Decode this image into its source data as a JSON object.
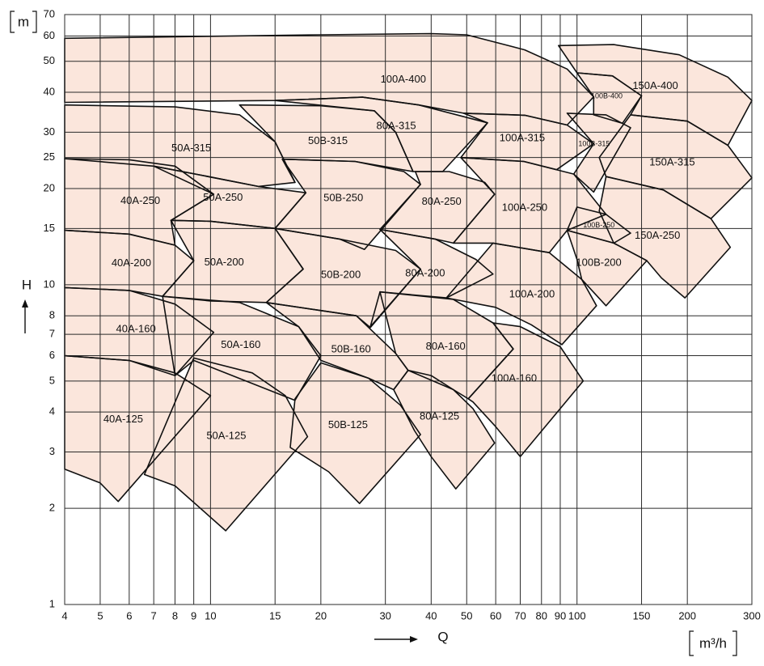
{
  "chart_data": {
    "type": "coverage",
    "xlabel": "Q",
    "ylabel": "H",
    "xunit": "m³/h",
    "yunit": "m",
    "xscale": "log",
    "yscale": "log",
    "xlim": [
      4,
      300
    ],
    "ylim": [
      1,
      70
    ],
    "xticks": [
      4,
      5,
      6,
      7,
      8,
      9,
      10,
      15,
      20,
      30,
      40,
      50,
      60,
      70,
      80,
      90,
      100,
      150,
      200,
      300
    ],
    "yticks": [
      1,
      2,
      3,
      4,
      5,
      6,
      7,
      8,
      10,
      15,
      20,
      25,
      30,
      40,
      50,
      60,
      70
    ],
    "grid": true,
    "color": "#fbe6dc",
    "series": [
      {
        "name": "40A-125",
        "x": [
          4,
          6,
          8,
          10,
          5.6,
          5,
          4
        ],
        "values": [
          6,
          5.8,
          5.3,
          4.5,
          2.1,
          2.4,
          2.65
        ]
      },
      {
        "name": "50A-125",
        "x": [
          9,
          13,
          16,
          18.4,
          11,
          8,
          6.6
        ],
        "values": [
          5.9,
          5.3,
          4.5,
          3.35,
          1.7,
          2.35,
          2.55
        ]
      },
      {
        "name": "50B-125",
        "x": [
          17,
          20,
          27,
          33,
          37.4,
          25.5,
          21,
          16.5
        ],
        "values": [
          4.4,
          5.7,
          5.1,
          4.2,
          3.4,
          2.07,
          2.6,
          3.1
        ]
      },
      {
        "name": "80A-125",
        "x": [
          31.6,
          34.6,
          40,
          46,
          52,
          59.6,
          46.7,
          40,
          36
        ],
        "values": [
          4.7,
          5.4,
          5.2,
          4.7,
          4.1,
          3.2,
          2.3,
          2.9,
          3.5
        ]
      },
      {
        "name": "100A-160",
        "x": [
          67,
          59,
          70,
          90,
          104,
          70,
          60,
          52,
          50.5
        ],
        "values": [
          6.3,
          7.6,
          7.4,
          6.4,
          5,
          2.9,
          3.6,
          4.3,
          4.4
        ]
      },
      {
        "name": "40A-160",
        "x": [
          4,
          6,
          8,
          10.2,
          8,
          6,
          4
        ],
        "values": [
          9.8,
          9.6,
          8.7,
          7.1,
          5.2,
          5.8,
          6
        ]
      },
      {
        "name": "50A-160",
        "x": [
          7.4,
          12,
          17.4,
          20,
          17,
          9,
          8
        ],
        "values": [
          9.2,
          8.8,
          7.4,
          6,
          4.35,
          5.8,
          5.2
        ]
      },
      {
        "name": "50B-160",
        "x": [
          14.2,
          25,
          32,
          34.6,
          31.6,
          27,
          20,
          17.4
        ],
        "values": [
          8.8,
          8,
          6.1,
          5.4,
          4.7,
          5.1,
          5.8,
          7.4
        ]
      },
      {
        "name": "80A-160",
        "x": [
          29,
          46,
          59,
          67,
          50.5,
          46,
          34.6,
          32
        ],
        "values": [
          9.5,
          9,
          7.6,
          6.3,
          4.4,
          4.7,
          5.4,
          6.1
        ]
      },
      {
        "name": "40A-200",
        "x": [
          4,
          6,
          8,
          9,
          7.4,
          6,
          4
        ],
        "values": [
          14.8,
          14.4,
          13.3,
          11.9,
          9.2,
          9.6,
          9.8
        ]
      },
      {
        "name": "50A-200",
        "x": [
          7.8,
          10,
          15,
          17.9,
          14.2,
          10,
          7.4,
          9
        ],
        "values": [
          15.9,
          15.8,
          15,
          11.2,
          8.8,
          8.9,
          9.2,
          11.9
        ]
      },
      {
        "name": "50B-200",
        "x": [
          15,
          22.5,
          32,
          37.4,
          27.3,
          25,
          14.2,
          17.9
        ],
        "values": [
          15,
          13.9,
          12.8,
          11.2,
          7.35,
          8,
          8.8,
          11.2
        ]
      },
      {
        "name": "80A-200",
        "x": [
          29,
          41,
          53,
          59,
          44,
          29,
          27.3,
          37.4
        ],
        "values": [
          14.9,
          13.9,
          12,
          10.8,
          9.1,
          9.5,
          7.4,
          11.2
        ]
      },
      {
        "name": "100A-200",
        "x": [
          59,
          84,
          103,
          113,
          91,
          75,
          60,
          44
        ],
        "values": [
          13.5,
          12.6,
          10.4,
          8.6,
          6.5,
          7.5,
          8.5,
          9.1
        ]
      },
      {
        "name": "100B-200",
        "x": [
          94,
          126,
          155,
          120,
          103,
          100
        ],
        "values": [
          14.8,
          13.5,
          11.9,
          8.6,
          10.4,
          12
        ]
      },
      {
        "name": "40A-250",
        "x": [
          4,
          6,
          8,
          10.2,
          7.8,
          8,
          6,
          4
        ],
        "values": [
          24.8,
          24.6,
          23.5,
          19.2,
          15.9,
          13.3,
          14.4,
          14.8
        ]
      },
      {
        "name": "50A-250",
        "x": [
          7,
          9.1,
          13.5,
          18.2,
          15,
          10,
          7.8,
          10.2
        ],
        "values": [
          23.5,
          22.2,
          20.3,
          19.4,
          15,
          15.8,
          15.9,
          19.2
        ]
      },
      {
        "name": "50B-250",
        "x": [
          15.7,
          24.8,
          33.7,
          37.4,
          26.3,
          22.5,
          15,
          18.2
        ],
        "values": [
          24.7,
          24.3,
          22.6,
          20.6,
          12.9,
          13.9,
          15,
          19.4
        ]
      },
      {
        "name": "80A-250",
        "x": [
          36.2,
          44.8,
          56,
          59.6,
          46,
          41,
          29,
          37.4
        ],
        "values": [
          22.6,
          22.6,
          20.9,
          19.2,
          13.5,
          13.9,
          14.9,
          20.6
        ]
      },
      {
        "name": "100A-250",
        "x": [
          48.2,
          71.6,
          98,
          120,
          94,
          84,
          59,
          46,
          59.6
        ],
        "values": [
          25,
          24.3,
          22.2,
          16.6,
          14.8,
          12.6,
          13.5,
          13.5,
          19.2
        ]
      },
      {
        "name": "100B-250",
        "x": [
          100,
          120,
          140,
          126,
          94
        ],
        "values": [
          17.5,
          16.6,
          14.5,
          13.5,
          14.8
        ],
        "label_size": "small"
      },
      {
        "name": "150A-250",
        "x": [
          120,
          172,
          232,
          262,
          197,
          170,
          155,
          126,
          115
        ],
        "values": [
          21.8,
          19.8,
          16.1,
          13.1,
          9.1,
          10.5,
          11.9,
          13.5,
          17
        ]
      },
      {
        "name": "50A-315",
        "x": [
          4,
          8,
          12,
          15,
          17,
          13.5,
          9.1,
          7,
          4
        ],
        "values": [
          36.5,
          36,
          34,
          28,
          20.9,
          20.3,
          22.2,
          23.5,
          24.8
        ]
      },
      {
        "name": "50B-315",
        "x": [
          12,
          20,
          28,
          32,
          35.7,
          24.8,
          15.7,
          17,
          15
        ],
        "values": [
          36.5,
          36.3,
          35,
          30,
          22.6,
          24.3,
          24.7,
          20.9,
          28
        ]
      },
      {
        "name": "80A-315",
        "x": [
          15,
          26,
          37,
          57,
          43,
          35.7,
          32,
          28
        ],
        "values": [
          37.7,
          38.6,
          36.5,
          32.1,
          22.6,
          22.6,
          30,
          35
        ]
      },
      {
        "name": "100A-315",
        "x": [
          49,
          72,
          94,
          111,
          88,
          71.6,
          48.2,
          57
        ],
        "values": [
          34.4,
          33.9,
          31.6,
          27.6,
          22.9,
          24.3,
          25,
          32.1
        ]
      },
      {
        "name": "100B-315",
        "x": [
          94,
          120,
          140,
          111,
          98,
          111
        ],
        "values": [
          34.4,
          34,
          31,
          19.5,
          22.2,
          27.6
        ],
        "label_size": "small"
      },
      {
        "name": "150A-315",
        "x": [
          140,
          200,
          258,
          300,
          232,
          172,
          120,
          115
        ],
        "values": [
          34,
          32.5,
          27.3,
          21.6,
          16.1,
          19.8,
          21.8,
          25
        ]
      },
      {
        "name": "100A-400",
        "x": [
          4,
          20,
          40,
          50,
          72,
          94,
          111,
          94,
          72,
          49,
          37,
          26,
          15,
          4
        ],
        "values": [
          59,
          60.5,
          61,
          60.5,
          54.3,
          47.3,
          38.7,
          31.6,
          33.9,
          34.4,
          36.5,
          38.6,
          37.7,
          37.2
        ]
      },
      {
        "name": "100B-400",
        "x": [
          100,
          125,
          150,
          133,
          111,
          111
        ],
        "values": [
          46,
          45,
          39,
          32,
          34,
          38.7
        ],
        "label_size": "small"
      },
      {
        "name": "150A-400",
        "x": [
          89,
          126,
          190,
          258,
          300,
          258,
          200,
          140,
          150,
          125,
          100
        ],
        "values": [
          56,
          56.4,
          52.4,
          44.6,
          37.7,
          27.3,
          32.5,
          34,
          39,
          45,
          46
        ]
      }
    ]
  }
}
